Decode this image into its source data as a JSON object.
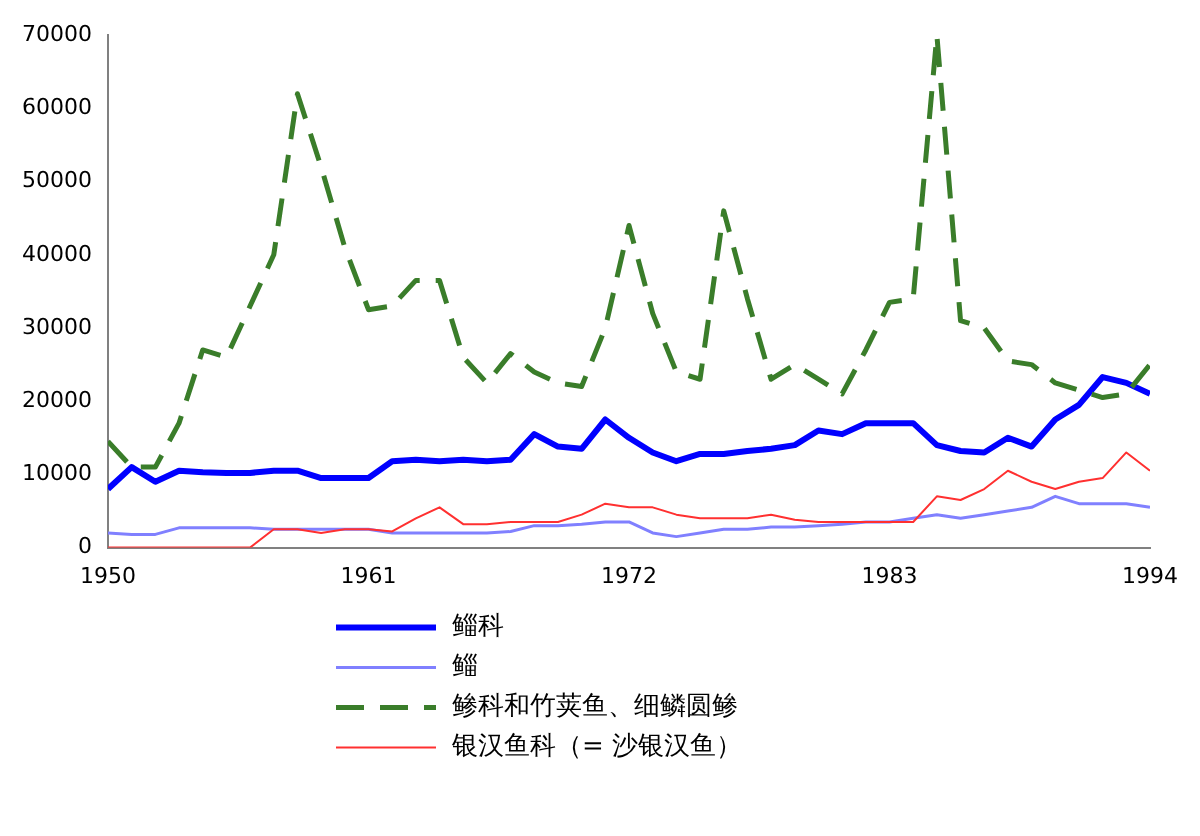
{
  "chart_data": {
    "type": "line",
    "x": [
      1950,
      1951,
      1952,
      1953,
      1954,
      1955,
      1956,
      1957,
      1958,
      1959,
      1960,
      1961,
      1962,
      1963,
      1964,
      1965,
      1966,
      1967,
      1968,
      1969,
      1970,
      1971,
      1972,
      1973,
      1974,
      1975,
      1976,
      1977,
      1978,
      1979,
      1980,
      1981,
      1982,
      1983,
      1984,
      1985,
      1986,
      1987,
      1988,
      1989,
      1990,
      1991,
      1992,
      1993,
      1994
    ],
    "xlim": [
      1950,
      1994
    ],
    "xticks": [
      1950,
      1961,
      1972,
      1983,
      1994
    ],
    "ylim": [
      0,
      70000
    ],
    "yticks": [
      0,
      10000,
      20000,
      30000,
      40000,
      50000,
      60000,
      70000
    ],
    "grid": false,
    "legend": "bottom",
    "marker": "none",
    "series": [
      {
        "name": "鲻科",
        "color": "#0000ff",
        "line_style": "solid",
        "values": [
          8000,
          11000,
          9000,
          10500,
          10300,
          10200,
          10200,
          10500,
          10500,
          9500,
          9500,
          9500,
          11800,
          12000,
          11800,
          12000,
          11800,
          12000,
          15500,
          13800,
          13500,
          17500,
          15000,
          13000,
          11800,
          12800,
          12800,
          13200,
          13500,
          14000,
          16000,
          15500,
          17000,
          17000,
          17000,
          14000,
          13200,
          13000,
          15000,
          13800,
          17500,
          19500,
          23300,
          22500,
          21000
        ]
      },
      {
        "name": "鲻",
        "color": "#8080ff",
        "line_style": "solid",
        "values": [
          2000,
          1800,
          1800,
          2700,
          2700,
          2700,
          2700,
          2500,
          2500,
          2500,
          2500,
          2500,
          2000,
          2000,
          2000,
          2000,
          2000,
          2200,
          3000,
          3000,
          3200,
          3500,
          3500,
          2000,
          1500,
          2000,
          2500,
          2500,
          2800,
          2800,
          3000,
          3200,
          3500,
          3500,
          4000,
          4500,
          4000,
          4500,
          5000,
          5500,
          7000,
          6000,
          6000,
          6000,
          5500
        ]
      },
      {
        "name": "鲹科和竹荚鱼、细鳞圆鲹",
        "color": "#3a7d2a",
        "line_style": "dashed",
        "values": [
          14500,
          11000,
          11000,
          17000,
          27000,
          26000,
          33000,
          40000,
          62000,
          52000,
          41000,
          32500,
          33000,
          36500,
          36500,
          26000,
          22500,
          26500,
          24000,
          22500,
          22000,
          30000,
          44000,
          32000,
          24000,
          23000,
          46000,
          34000,
          23000,
          25000,
          23000,
          21000,
          27000,
          33500,
          34000,
          70000,
          31000,
          30000,
          25500,
          25000,
          22500,
          21500,
          20500,
          21000,
          25000
        ]
      },
      {
        "name": "银汉鱼科（= 沙银汉鱼）",
        "color": "#ff3030",
        "line_style": "solid",
        "values": [
          0,
          0,
          0,
          0,
          0,
          0,
          0,
          2500,
          2500,
          2000,
          2500,
          2500,
          2200,
          4000,
          5500,
          3200,
          3200,
          3500,
          3500,
          3500,
          4500,
          6000,
          5500,
          5500,
          4500,
          4000,
          4000,
          4000,
          4500,
          3800,
          3500,
          3500,
          3500,
          3500,
          3500,
          7000,
          6500,
          8000,
          10500,
          9000,
          8000,
          9000,
          9500,
          13000,
          10500
        ]
      }
    ]
  }
}
